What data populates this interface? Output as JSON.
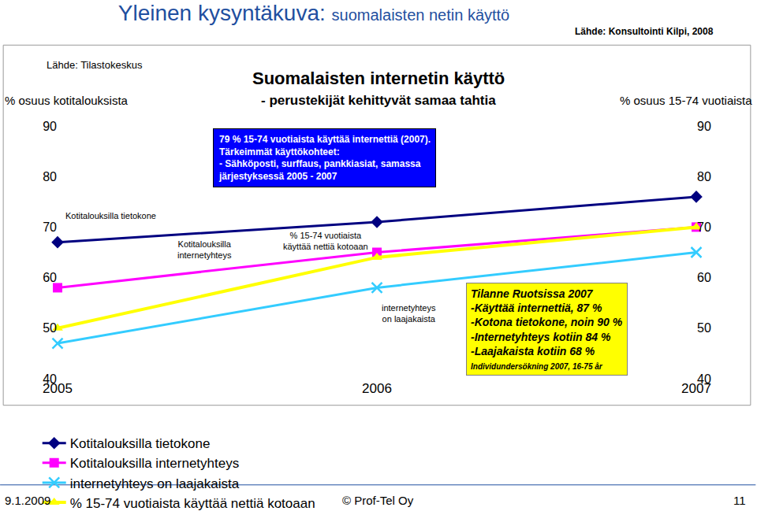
{
  "header": {
    "title": "Yleinen kysyntäkuva:",
    "subtitle": "suomalaisten netin käyttö",
    "source": "Lähde: Konsultointi Kilpi, 2008"
  },
  "footer": {
    "date": "9.1.2009",
    "copyright": "© Prof-Tel Oy",
    "page": "11"
  },
  "chart_data": {
    "type": "line",
    "title": "Suomalaisten internetin käyttö",
    "subtitle": "- perustekijät kehittyvät samaa tahtia",
    "source": "Lähde: Tilastokeskus",
    "ylabel": "% osuus kotitalouksista",
    "y2label": "% osuus 15-74 vuotiaista",
    "x": [
      2005,
      2006,
      2007
    ],
    "xlim": [
      2005,
      2007
    ],
    "xticks": [
      2005,
      2006,
      2007
    ],
    "ylim": [
      40,
      90
    ],
    "yticks": [
      40,
      50,
      60,
      70,
      80,
      90
    ],
    "y2lim": [
      40,
      90
    ],
    "y2ticks": [
      40,
      50,
      60,
      70,
      80,
      90
    ],
    "grid": false,
    "legend": "bottom",
    "series": [
      {
        "name": "Kotitalouksilla tietokone",
        "color": "#000080",
        "marker": "diamond",
        "values": [
          67,
          71,
          76
        ]
      },
      {
        "name": "Kotitalouksilla internetyhteys",
        "color": "#ff00ff",
        "marker": "square",
        "values": [
          58,
          65,
          70
        ]
      },
      {
        "name": "internetyhteys on laajakaista",
        "color": "#33ccff",
        "marker": "x-thin",
        "values": [
          47,
          58,
          65
        ]
      },
      {
        "name": "% 15-74 vuotiaista käyttää nettiä kotoaan",
        "color": "#ffff00",
        "marker": "triangle-up",
        "axis": "y2",
        "values": [
          50,
          64,
          70
        ]
      }
    ],
    "notes": [
      {
        "lines": [
          "79 % 15-74 vuotiaista käyttää internettiä (2007).",
          "Tärkeimmät käyttökohteet:",
          "- Sähköposti, surffaus, pankkiasiat, samassa",
          "järjestyksessä 2005 - 2007"
        ]
      },
      {
        "lines": [
          "Tilanne Ruotsissa 2007",
          "-Käyttää internettiä, 87 %",
          "-Kotona tietokone, noin 90 %",
          "-Internetyhteys kotiin 84 %",
          "-Laajakaista kotiin 68 %"
        ],
        "source": "Individundersökning 2007, 16-75 år"
      }
    ]
  }
}
